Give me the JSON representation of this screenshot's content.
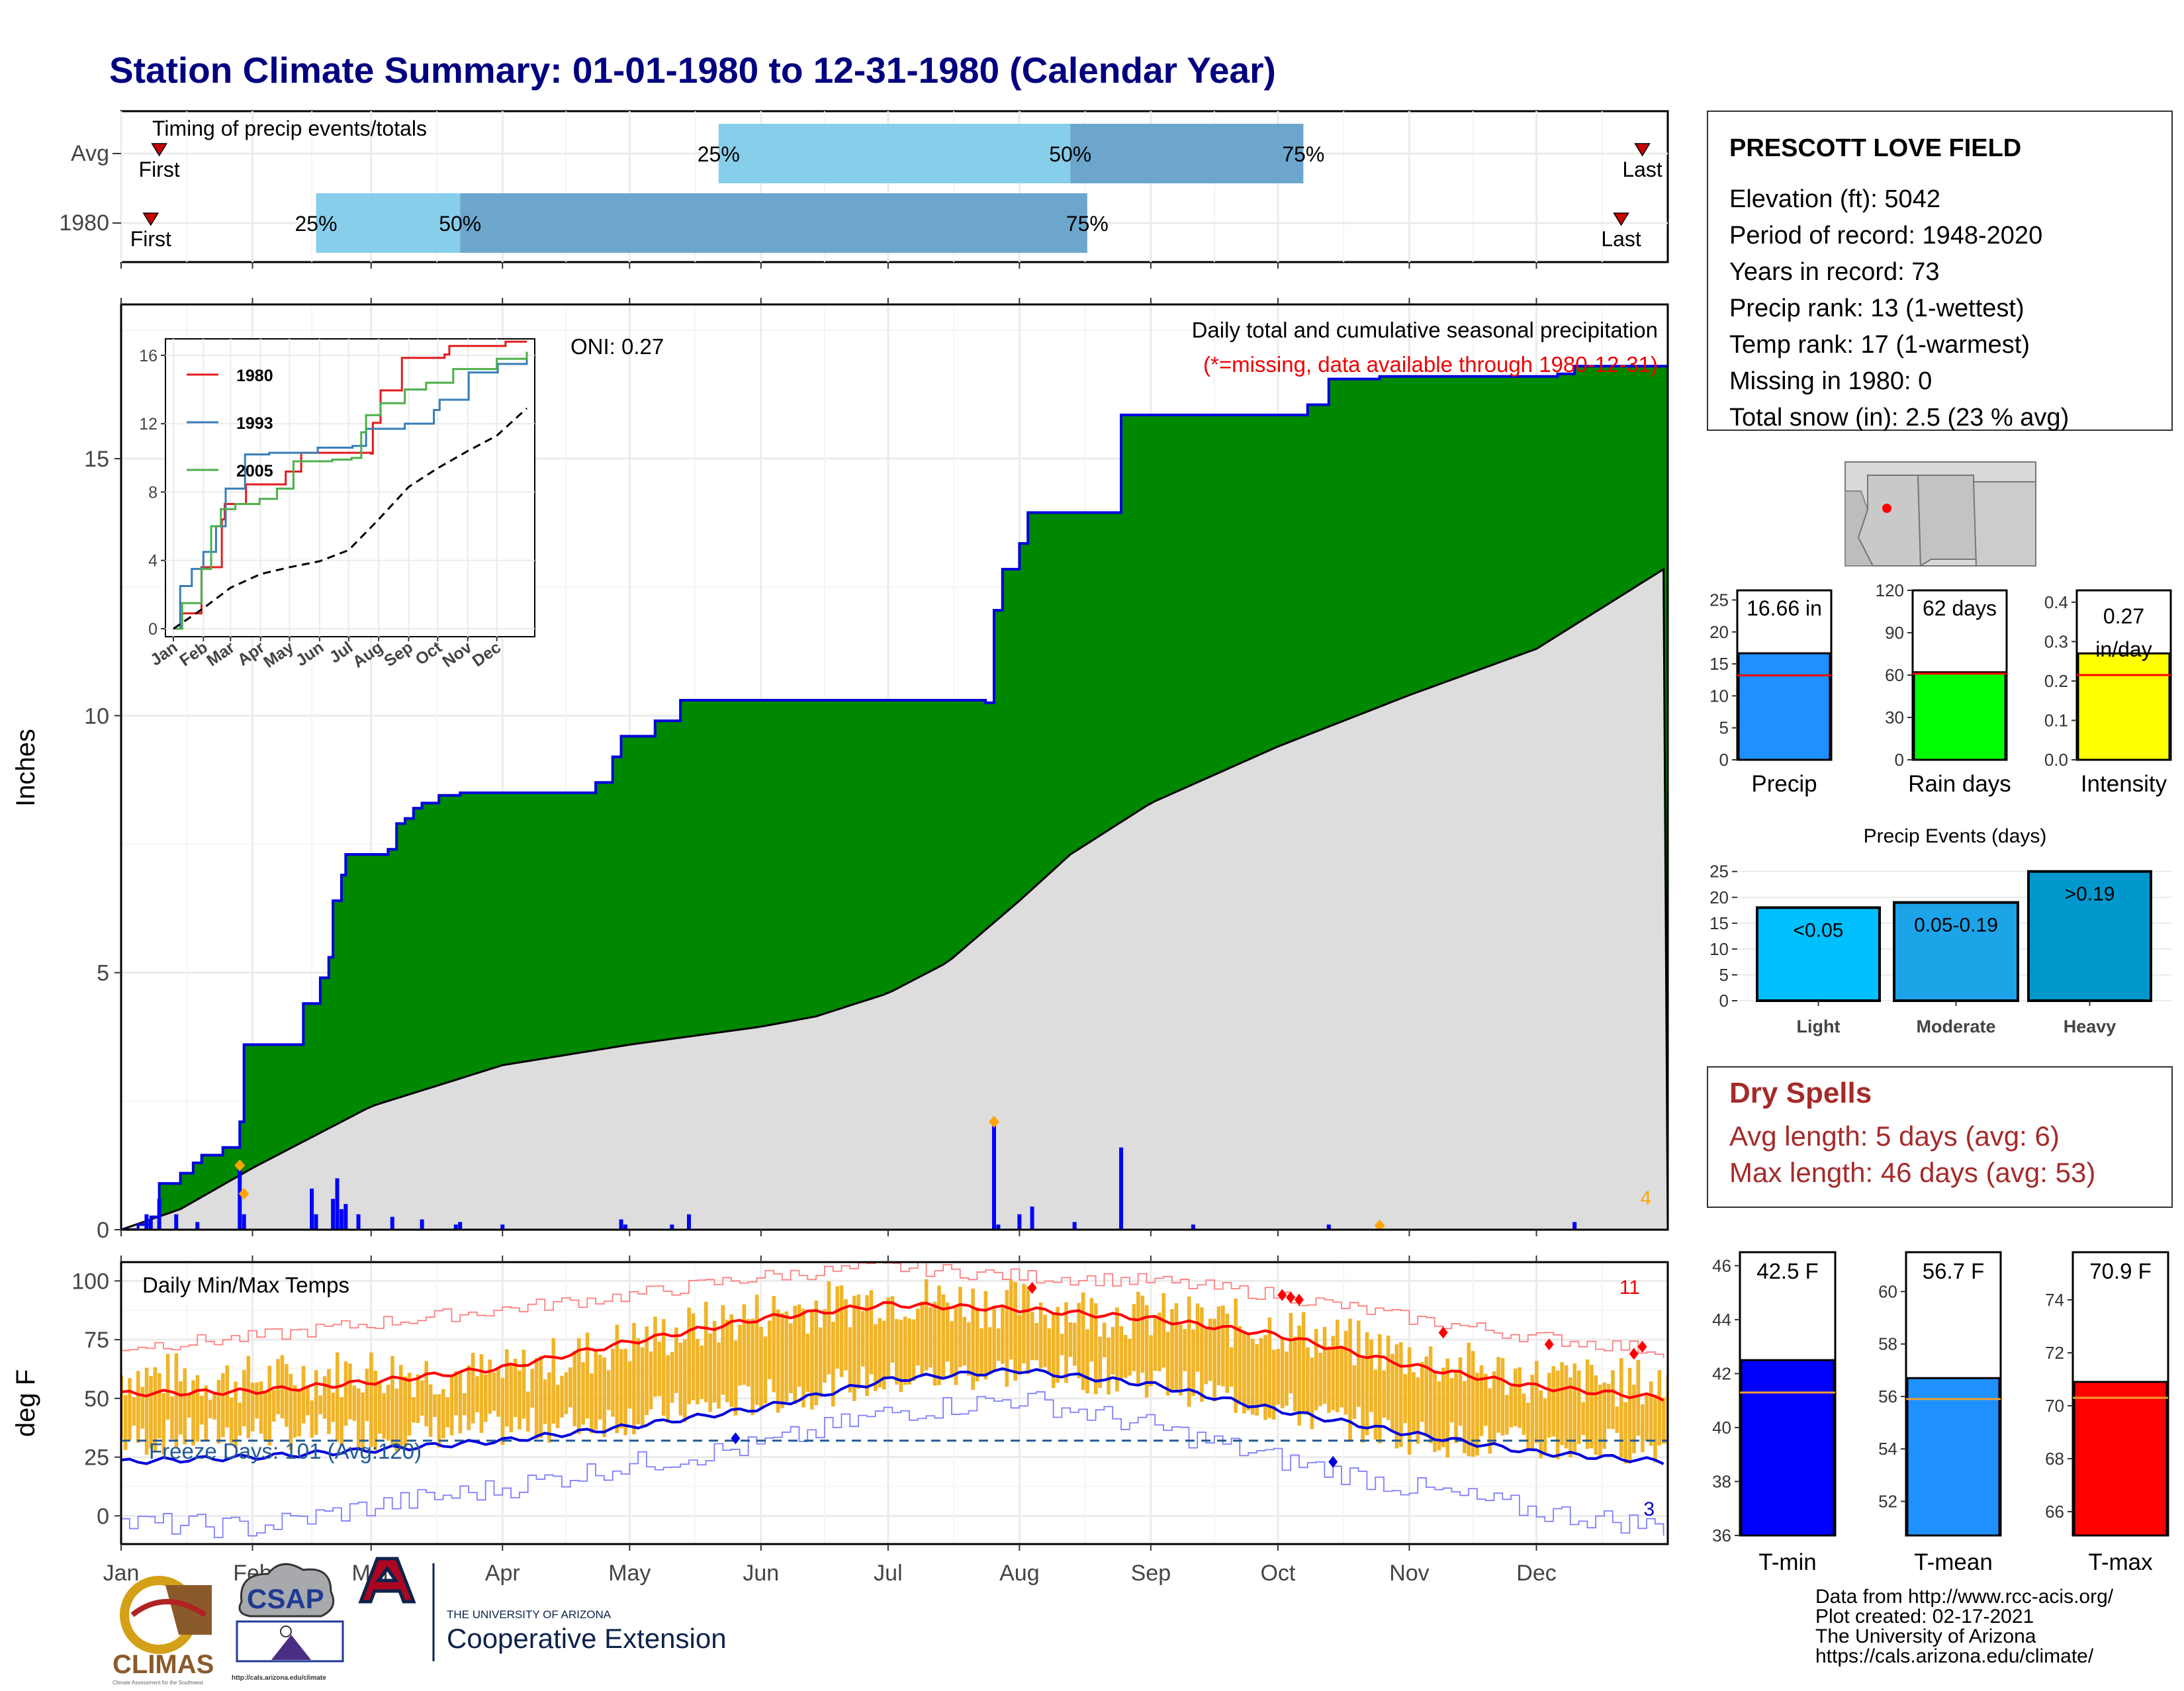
{
  "title": "Station Climate Summary: 01-01-1980 to 12-31-1980 (Calendar Year)",
  "colors": {
    "title": "#000080",
    "pct_light": "#87CEEB",
    "pct_dark": "#6CA6CD",
    "cum_obs": "#008800",
    "cum_line": "#0000DD",
    "cum_avg": "#DDDDDD",
    "daily_bar": "#0000FF",
    "temp_range": "#F0B428",
    "tmax_avg": "#FF0000",
    "tmin_avg": "#0000DD",
    "freeze_line": "#1F5A96",
    "precip_bar": "#1E90FF",
    "rain_bar": "#00FF00",
    "intensity_bar": "#FFFF00",
    "light_bar": "#00BFFF",
    "moderate_bar": "#1CA3E8",
    "heavy_bar": "#0097CC",
    "dry_text": "#A52A2A",
    "tmin_bar": "#0000FF",
    "tmean_bar": "#1E90FF",
    "tmax_bar": "#FF0000"
  },
  "timing": {
    "label": "Timing of precip events/totals",
    "rows": [
      "Avg",
      "1980"
    ],
    "pct_labels": [
      "25%",
      "50%",
      "75%"
    ],
    "first_label": "First",
    "last_label": "Last"
  },
  "months": [
    "Jan",
    "Feb",
    "Mar",
    "Apr",
    "May",
    "Jun",
    "Jul",
    "Aug",
    "Sep",
    "Oct",
    "Nov",
    "Dec"
  ],
  "precip_panel": {
    "header": "Daily total and cumulative seasonal precipitation",
    "missing_note": "(*=missing, data available through 1980-12-31)",
    "oni": "ONI: 0.27",
    "ylabel": "Inches",
    "yticks": [
      "0",
      "5",
      "10",
      "15"
    ],
    "corner_count": "4",
    "inset": {
      "series_names": [
        "1980",
        "1993",
        "2005"
      ],
      "yticks": [
        "0",
        "4",
        "8",
        "12",
        "16"
      ]
    }
  },
  "temp_panel": {
    "label": "Daily Min/Max Temps",
    "ylabel": "deg F",
    "yticks": [
      "0",
      "25",
      "50",
      "75",
      "100"
    ],
    "freeze_text": "Freeze Days: 101 (Avg:120)",
    "hot_count": "11",
    "cold_count": "3"
  },
  "station": {
    "name": "PRESCOTT LOVE FIELD",
    "lines": [
      "Elevation (ft): 5042",
      "Period of record: 1948-2020",
      "Years in record: 73",
      "Precip rank: 13 (1-wettest)",
      "Temp rank: 17 (1-warmest)",
      "Missing in 1980: 0",
      "Total snow (in): 2.5 (23 % avg)"
    ]
  },
  "summary_bars": [
    {
      "label": "Precip",
      "value_text": "16.66 in",
      "yticks": [
        "0",
        "5",
        "10",
        "15",
        "20",
        "25"
      ]
    },
    {
      "label": "Rain days",
      "value_text": "62 days",
      "yticks": [
        "0",
        "30",
        "60",
        "90",
        "120"
      ]
    },
    {
      "label": "Intensity",
      "value_text": "0.27",
      "value_text2": "in/day",
      "yticks": [
        "0.0",
        "0.1",
        "0.2",
        "0.3",
        "0.4"
      ]
    }
  ],
  "events": {
    "title": "Precip Events (days)",
    "yticks": [
      "0",
      "5",
      "10",
      "15",
      "20",
      "25"
    ],
    "bars": [
      {
        "label": "Light",
        "value_text": "<0.05"
      },
      {
        "label": "Moderate",
        "value_text": "0.05-0.19"
      },
      {
        "label": "Heavy",
        "value_text": ">0.19"
      }
    ]
  },
  "dry_spells": {
    "title": "Dry Spells",
    "avg": "Avg length: 5 days (avg: 6)",
    "max": "Max length: 46 days (avg: 53)"
  },
  "temp_bars": [
    {
      "label": "T-min",
      "value_text": "42.5 F",
      "yticks": [
        "36",
        "38",
        "40",
        "42",
        "44",
        "46"
      ]
    },
    {
      "label": "T-mean",
      "value_text": "56.7 F",
      "yticks": [
        "52",
        "54",
        "56",
        "58",
        "60"
      ]
    },
    {
      "label": "T-max",
      "value_text": "70.9 F",
      "yticks": [
        "66",
        "68",
        "70",
        "72",
        "74"
      ]
    }
  ],
  "footer": {
    "lines": [
      "Data from http://www.rcc-acis.org/",
      "Plot created: 02-17-2021",
      "The University of Arizona",
      "https://cals.arizona.edu/climate/"
    ]
  },
  "logos": {
    "climas": "CLIMAS",
    "climas_sub": "Climate Assessment for the Southwest",
    "csap": "CSAP",
    "csap_url": "http://cals.arizona.edu/climate",
    "ua_small": "THE UNIVERSITY OF ARIZONA",
    "ua_big": "Cooperative Extension"
  },
  "chart_data": [
    {
      "type": "bar",
      "name": "timing",
      "rows": [
        "Avg",
        "1980"
      ],
      "x_unit": "day of year",
      "avg": {
        "first": 10,
        "p25": 142,
        "p50": 225,
        "p75": 280,
        "last": 360
      },
      "y1980": {
        "first": 8,
        "p25": 47,
        "p50": 81,
        "p75": 229,
        "last": 355
      }
    },
    {
      "type": "area",
      "name": "cumulative_precip",
      "x_unit": "day of year",
      "ylabel": "Inches",
      "ylim": [
        0,
        18
      ],
      "observed_cumulative": [
        [
          1,
          0
        ],
        [
          5,
          0.1
        ],
        [
          8,
          0.25
        ],
        [
          10,
          0.9
        ],
        [
          15,
          1.1
        ],
        [
          18,
          1.3
        ],
        [
          20,
          1.45
        ],
        [
          25,
          1.6
        ],
        [
          29,
          2.1
        ],
        [
          30,
          3.6
        ],
        [
          43,
          3.6
        ],
        [
          44,
          4.4
        ],
        [
          48,
          4.9
        ],
        [
          50,
          5.3
        ],
        [
          51,
          6.4
        ],
        [
          53,
          6.9
        ],
        [
          54,
          7.3
        ],
        [
          64,
          7.4
        ],
        [
          66,
          7.9
        ],
        [
          68,
          8.0
        ],
        [
          70,
          8.2
        ],
        [
          72,
          8.3
        ],
        [
          76,
          8.45
        ],
        [
          81,
          8.5
        ],
        [
          113,
          8.7
        ],
        [
          117,
          9.2
        ],
        [
          119,
          9.6
        ],
        [
          127,
          9.9
        ],
        [
          133,
          10.3
        ],
        [
          205,
          10.25
        ],
        [
          207,
          12.05
        ],
        [
          209,
          12.85
        ],
        [
          213,
          13.35
        ],
        [
          215,
          13.95
        ],
        [
          237,
          15.85
        ],
        [
          281,
          16.05
        ],
        [
          286,
          16.55
        ],
        [
          298,
          16.6
        ],
        [
          340,
          16.65
        ],
        [
          344,
          16.8
        ],
        [
          366,
          16.8
        ]
      ],
      "average_cumulative": [
        [
          1,
          0
        ],
        [
          15,
          0.4
        ],
        [
          32,
          1.2
        ],
        [
          60,
          2.4
        ],
        [
          91,
          3.2
        ],
        [
          121,
          3.6
        ],
        [
          152,
          3.95
        ],
        [
          165,
          4.15
        ],
        [
          182,
          4.6
        ],
        [
          196,
          5.2
        ],
        [
          213,
          6.4
        ],
        [
          225,
          7.3
        ],
        [
          244,
          8.3
        ],
        [
          274,
          9.4
        ],
        [
          305,
          10.4
        ],
        [
          335,
          11.3
        ],
        [
          366,
          12.9
        ]
      ],
      "daily": [
        [
          7,
          0.3
        ],
        [
          8,
          0.2
        ],
        [
          10,
          0.6
        ],
        [
          14,
          0.3
        ],
        [
          19,
          0.15
        ],
        [
          29,
          1.25
        ],
        [
          30,
          0.3
        ],
        [
          46,
          0.8
        ],
        [
          47,
          0.3
        ],
        [
          51,
          0.6
        ],
        [
          52,
          1.0
        ],
        [
          53,
          0.4
        ],
        [
          54,
          0.5
        ],
        [
          57,
          0.3
        ],
        [
          65,
          0.25
        ],
        [
          72,
          0.2
        ],
        [
          80,
          0.1
        ],
        [
          81,
          0.15
        ],
        [
          91,
          0.1
        ],
        [
          119,
          0.2
        ],
        [
          120,
          0.1
        ],
        [
          131,
          0.1
        ],
        [
          135,
          0.3
        ],
        [
          207,
          2.05
        ],
        [
          208,
          0.1
        ],
        [
          213,
          0.3
        ],
        [
          216,
          0.45
        ],
        [
          226,
          0.15
        ],
        [
          237,
          1.6
        ],
        [
          254,
          0.1
        ],
        [
          286,
          0.1
        ],
        [
          298,
          0.05
        ],
        [
          344,
          0.15
        ]
      ]
    },
    {
      "type": "line",
      "name": "inset_cumulative",
      "ylim": [
        0,
        16.5
      ],
      "series": [
        {
          "name": "1980",
          "points": [
            [
              1,
              0
            ],
            [
              10,
              0.9
            ],
            [
              30,
              3.6
            ],
            [
              51,
              6.4
            ],
            [
              54,
              7.3
            ],
            [
              76,
              8.45
            ],
            [
              117,
              9.2
            ],
            [
              133,
              10.3
            ],
            [
              205,
              10.25
            ],
            [
              207,
              12.05
            ],
            [
              215,
              13.95
            ],
            [
              237,
              15.85
            ],
            [
              281,
              16.05
            ],
            [
              286,
              16.55
            ],
            [
              344,
              16.8
            ],
            [
              366,
              16.8
            ]
          ]
        },
        {
          "name": "1993",
          "points": [
            [
              1,
              0
            ],
            [
              8,
              2.5
            ],
            [
              20,
              3.5
            ],
            [
              32,
              4.5
            ],
            [
              45,
              6.0
            ],
            [
              55,
              8.2
            ],
            [
              75,
              10.2
            ],
            [
              100,
              10.3
            ],
            [
              150,
              10.6
            ],
            [
              186,
              10.7
            ],
            [
              200,
              11.7
            ],
            [
              240,
              12.0
            ],
            [
              262,
              12.0
            ],
            [
              270,
              12.8
            ],
            [
              276,
              13.4
            ],
            [
              306,
              15.0
            ],
            [
              336,
              15.5
            ],
            [
              366,
              16.2
            ]
          ]
        },
        {
          "name": "2005",
          "points": [
            [
              1,
              0
            ],
            [
              10,
              1.5
            ],
            [
              30,
              3.5
            ],
            [
              40,
              6.0
            ],
            [
              50,
              7.0
            ],
            [
              65,
              7.3
            ],
            [
              90,
              7.6
            ],
            [
              108,
              8.2
            ],
            [
              125,
              9.8
            ],
            [
              165,
              9.9
            ],
            [
              185,
              10.0
            ],
            [
              195,
              11.5
            ],
            [
              200,
              12.5
            ],
            [
              215,
              13.2
            ],
            [
              240,
              14.0
            ],
            [
              262,
              14.4
            ],
            [
              290,
              15.2
            ],
            [
              335,
              15.8
            ],
            [
              366,
              16.2
            ]
          ]
        },
        {
          "name": "average",
          "points": [
            [
              1,
              0
            ],
            [
              32,
              1.2
            ],
            [
              60,
              2.4
            ],
            [
              91,
              3.2
            ],
            [
              121,
              3.6
            ],
            [
              152,
              3.95
            ],
            [
              182,
              4.6
            ],
            [
              213,
              6.4
            ],
            [
              244,
              8.3
            ],
            [
              274,
              9.4
            ],
            [
              305,
              10.4
            ],
            [
              335,
              11.3
            ],
            [
              366,
              12.9
            ]
          ]
        }
      ]
    },
    {
      "type": "line",
      "name": "daily_temps",
      "ylabel": "deg F",
      "ylim": [
        -12,
        108
      ],
      "x_unit": "day of year",
      "freeze_threshold": 32,
      "tmax_normal": [
        [
          1,
          52
        ],
        [
          32,
          53
        ],
        [
          60,
          57
        ],
        [
          91,
          63
        ],
        [
          121,
          74
        ],
        [
          152,
          84
        ],
        [
          182,
          90
        ],
        [
          213,
          88
        ],
        [
          244,
          84
        ],
        [
          274,
          77
        ],
        [
          305,
          64
        ],
        [
          335,
          55
        ],
        [
          366,
          50
        ]
      ],
      "tmin_normal": [
        [
          1,
          23
        ],
        [
          32,
          25
        ],
        [
          60,
          28
        ],
        [
          91,
          32
        ],
        [
          121,
          38
        ],
        [
          152,
          46
        ],
        [
          182,
          58
        ],
        [
          213,
          62
        ],
        [
          244,
          56
        ],
        [
          274,
          45
        ],
        [
          305,
          35
        ],
        [
          335,
          27
        ],
        [
          366,
          23
        ]
      ],
      "tmax_record": [
        [
          1,
          72
        ],
        [
          32,
          76
        ],
        [
          60,
          82
        ],
        [
          91,
          88
        ],
        [
          121,
          94
        ],
        [
          152,
          102
        ],
        [
          182,
          106
        ],
        [
          213,
          102
        ],
        [
          244,
          100
        ],
        [
          274,
          94
        ],
        [
          305,
          84
        ],
        [
          335,
          76
        ],
        [
          366,
          70
        ]
      ],
      "tmin_record": [
        [
          1,
          -3
        ],
        [
          32,
          -5
        ],
        [
          60,
          4
        ],
        [
          91,
          12
        ],
        [
          121,
          22
        ],
        [
          152,
          30
        ],
        [
          182,
          44
        ],
        [
          213,
          50
        ],
        [
          244,
          38
        ],
        [
          274,
          24
        ],
        [
          305,
          12
        ],
        [
          335,
          2
        ],
        [
          366,
          -5
        ]
      ],
      "tmax_1980": [
        [
          1,
          60
        ],
        [
          32,
          58
        ],
        [
          60,
          62
        ],
        [
          91,
          60
        ],
        [
          121,
          74
        ],
        [
          152,
          86
        ],
        [
          182,
          93
        ],
        [
          213,
          90
        ],
        [
          244,
          85
        ],
        [
          274,
          80
        ],
        [
          305,
          68
        ],
        [
          335,
          58
        ],
        [
          366,
          56
        ]
      ],
      "tmin_1980": [
        [
          1,
          32
        ],
        [
          32,
          36
        ],
        [
          60,
          35
        ],
        [
          91,
          37
        ],
        [
          121,
          42
        ],
        [
          152,
          50
        ],
        [
          182,
          58
        ],
        [
          213,
          62
        ],
        [
          244,
          58
        ],
        [
          274,
          46
        ],
        [
          305,
          34
        ],
        [
          335,
          30
        ],
        [
          366,
          30
        ]
      ]
    },
    {
      "type": "bar",
      "name": "summary_bars",
      "categories": [
        "Precip",
        "Rain days",
        "Intensity"
      ],
      "values": [
        16.66,
        62,
        0.27
      ],
      "averages": [
        13.2,
        61,
        0.215
      ],
      "ylims": [
        [
          0,
          26.5
        ],
        [
          0,
          120
        ],
        [
          0,
          0.43
        ]
      ]
    },
    {
      "type": "bar",
      "name": "precip_events",
      "categories": [
        "Light",
        "Moderate",
        "Heavy"
      ],
      "values": [
        18,
        19,
        25
      ],
      "ylim": [
        0,
        26.5
      ]
    },
    {
      "type": "bar",
      "name": "temp_bars",
      "categories": [
        "T-min",
        "T-mean",
        "T-max"
      ],
      "values": [
        42.5,
        56.7,
        70.9
      ],
      "averages": [
        41.3,
        55.9,
        70.3
      ],
      "ylims": [
        [
          36,
          46.5
        ],
        [
          50.7,
          61.5
        ],
        [
          65.1,
          75.8
        ]
      ]
    }
  ]
}
